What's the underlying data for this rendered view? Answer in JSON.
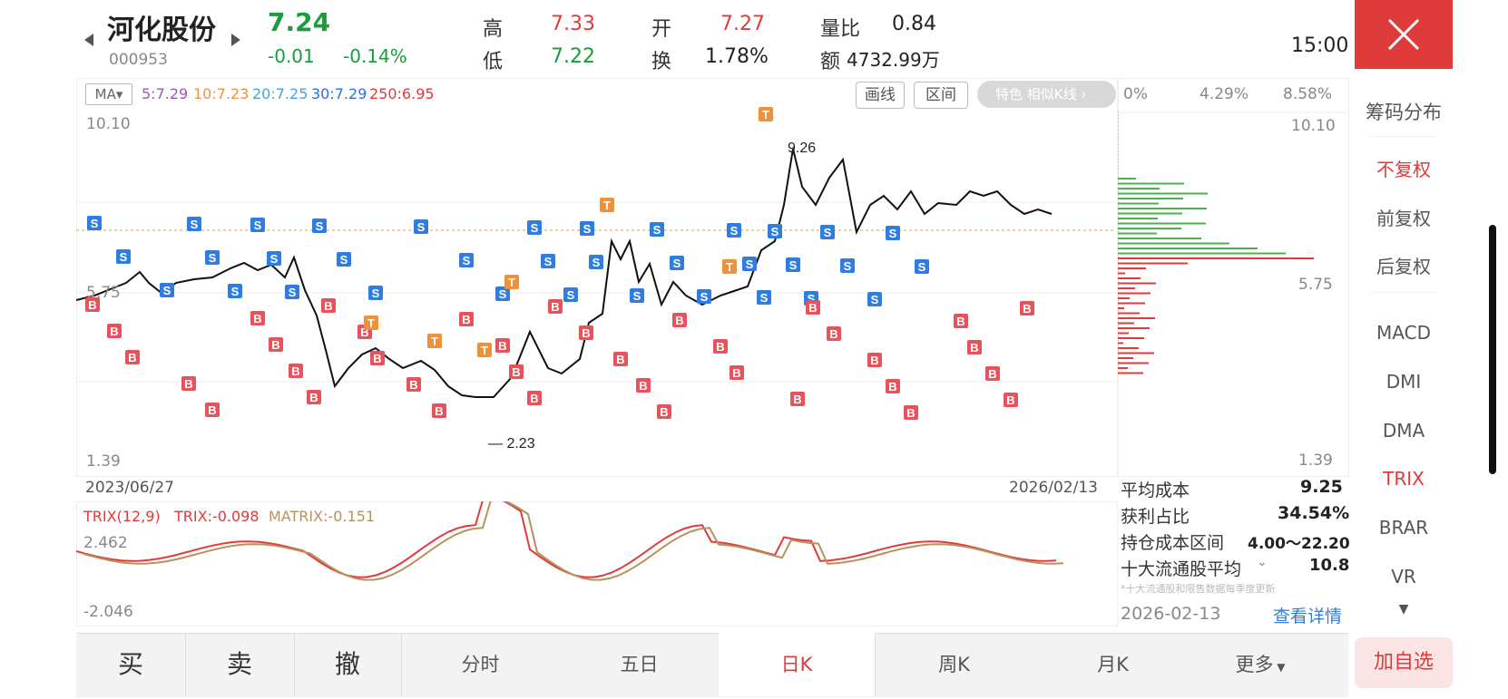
{
  "stock": {
    "name": "河化股份",
    "code": "000953",
    "price": "7.24",
    "change": "-0.01",
    "change_pct": "-0.14%",
    "high_label": "高",
    "high": "7.33",
    "low_label": "低",
    "low": "7.22",
    "open_label": "开",
    "open": "7.27",
    "turnover_label": "换",
    "turnover": "1.78%",
    "vol_ratio_label": "量比",
    "vol_ratio": "0.84",
    "amount_label": "额",
    "amount": "4732.99万",
    "time": "15:00"
  },
  "chart": {
    "ma_selector": "MA▾",
    "ma5": "5:7.29",
    "ma10": "10:7.23",
    "ma20": "20:7.25",
    "ma30": "30:7.29",
    "ma250": "250:6.95",
    "draw_button": "画线",
    "range_button": "区间",
    "feature_button": "特色  相似K线 ›",
    "y_max": "10.10",
    "y_mid": "5.75",
    "y_min": "1.39",
    "date_start": "2023/06/27",
    "date_end": "2026/02/13",
    "peak_label": "9.26",
    "trough_label": "2.23",
    "colors": {
      "ma5": "#9b59b6",
      "ma10": "#f0913a",
      "ma20": "#4aa3df",
      "ma30": "#2f6fd6",
      "ma250": "#e03b3b",
      "buy": "#e8525a",
      "sell": "#2f7de1",
      "t": "#f0913a"
    }
  },
  "chip": {
    "pct0": "0%",
    "pct1": "4.29%",
    "pct2": "8.58%",
    "y_max": "10.10",
    "y_mid": "5.75",
    "y_min": "1.39",
    "avg_cost_label": "平均成本",
    "avg_cost": "9.25",
    "profit_label": "获利占比",
    "profit": "34.54%",
    "range_label": "持仓成本区间",
    "range": "4.00～22.20",
    "top10_label": "十大流通股平均",
    "top10": "10.8",
    "note": "*十大流通股和限售数据每季度更新",
    "date": "2026-02-13",
    "detail_link": "查看详情"
  },
  "indicator": {
    "name": "TRIX(12,9)",
    "trix": "TRIX:-0.098",
    "matrix": "MATRIX:-0.151",
    "y_max": "2.462",
    "y_min": "-2.046"
  },
  "sidebar": {
    "title": "筹码分布",
    "items": [
      "不复权",
      "前复权",
      "后复权",
      "MACD",
      "DMI",
      "DMA",
      "TRIX",
      "BRAR",
      "VR"
    ]
  },
  "bottom": {
    "buy": "买",
    "sell": "卖",
    "cancel": "撤",
    "tabs": [
      "分时",
      "五日",
      "日K",
      "周K",
      "月K",
      "更多"
    ],
    "add_watch": "加自选"
  }
}
